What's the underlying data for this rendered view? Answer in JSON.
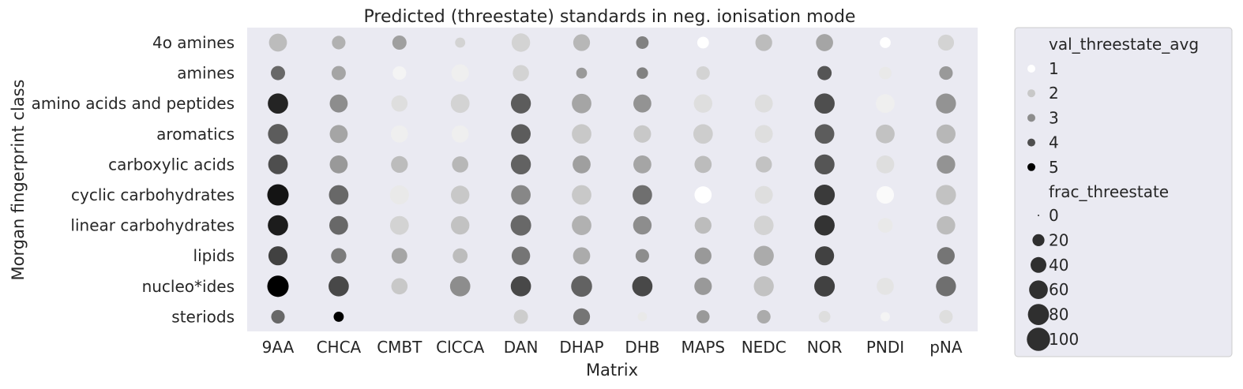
{
  "chart_data": {
    "type": "scatter",
    "title": "Predicted (threestate) standards in neg. ionisation mode",
    "xlabel": "Matrix",
    "ylabel": "Morgan fingerprint class",
    "categories_x": [
      "9AA",
      "CHCA",
      "CMBT",
      "ClCCA",
      "DAN",
      "DHAP",
      "DHB",
      "MAPS",
      "NEDC",
      "NOR",
      "PNDI",
      "pNA"
    ],
    "categories_y": [
      "4o amines",
      "amines",
      "amino acids and peptides",
      "aromatics",
      "carboxylic acids",
      "cyclic carbohydrates",
      "linear carbohydrates",
      "lipids",
      "nucleo*ides",
      "steriods"
    ],
    "grid": false,
    "background_color": "#eaeaf2",
    "color_scale": {
      "low": "#ffffff",
      "high": "#000000",
      "min": 1,
      "max": 5
    },
    "legend": {
      "placement": "outside-right",
      "hue_title": "val_threestate_avg",
      "hue_entries": [
        {
          "label": "1",
          "value": 1
        },
        {
          "label": "2",
          "value": 2
        },
        {
          "label": "3",
          "value": 3
        },
        {
          "label": "4",
          "value": 4
        },
        {
          "label": "5",
          "value": 5
        }
      ],
      "size_title": "frac_threestate",
      "size_entries": [
        {
          "label": "0",
          "value": 0
        },
        {
          "label": "20",
          "value": 20
        },
        {
          "label": "40",
          "value": 40
        },
        {
          "label": "60",
          "value": 60
        },
        {
          "label": "80",
          "value": 80
        },
        {
          "label": "100",
          "value": 100
        }
      ]
    },
    "points": [
      {
        "x": "9AA",
        "y": "4o amines",
        "val": 2.2,
        "frac": 45
      },
      {
        "x": "CHCA",
        "y": "4o amines",
        "val": 2.4,
        "frac": 22
      },
      {
        "x": "CMBT",
        "y": "4o amines",
        "val": 2.7,
        "frac": 25
      },
      {
        "x": "ClCCA",
        "y": "4o amines",
        "val": 1.8,
        "frac": 10
      },
      {
        "x": "DAN",
        "y": "4o amines",
        "val": 1.8,
        "frac": 48
      },
      {
        "x": "DHAP",
        "y": "4o amines",
        "val": 2.3,
        "frac": 38
      },
      {
        "x": "DHB",
        "y": "4o amines",
        "val": 3.2,
        "frac": 18
      },
      {
        "x": "MAPS",
        "y": "4o amines",
        "val": 1.0,
        "frac": 15
      },
      {
        "x": "NEDC",
        "y": "4o amines",
        "val": 2.2,
        "frac": 38
      },
      {
        "x": "NOR",
        "y": "4o amines",
        "val": 2.6,
        "frac": 40
      },
      {
        "x": "PNDI",
        "y": "4o amines",
        "val": 1.0,
        "frac": 12
      },
      {
        "x": "pNA",
        "y": "4o amines",
        "val": 1.8,
        "frac": 34
      },
      {
        "x": "9AA",
        "y": "amines",
        "val": 3.6,
        "frac": 25
      },
      {
        "x": "CHCA",
        "y": "amines",
        "val": 2.6,
        "frac": 25
      },
      {
        "x": "CMBT",
        "y": "amines",
        "val": 1.2,
        "frac": 22
      },
      {
        "x": "ClCCA",
        "y": "amines",
        "val": 1.3,
        "frac": 42
      },
      {
        "x": "DAN",
        "y": "amines",
        "val": 1.8,
        "frac": 35
      },
      {
        "x": "DHAP",
        "y": "amines",
        "val": 2.8,
        "frac": 12
      },
      {
        "x": "DHB",
        "y": "amines",
        "val": 3.2,
        "frac": 14
      },
      {
        "x": "MAPS",
        "y": "amines",
        "val": 1.8,
        "frac": 22
      },
      {
        "x": "NOR",
        "y": "amines",
        "val": 3.9,
        "frac": 25
      },
      {
        "x": "PNDI",
        "y": "amines",
        "val": 1.4,
        "frac": 18
      },
      {
        "x": "pNA",
        "y": "amines",
        "val": 2.8,
        "frac": 22
      },
      {
        "x": "9AA",
        "y": "amino acids and peptides",
        "val": 4.6,
        "frac": 60
      },
      {
        "x": "CHCA",
        "y": "amino acids and peptides",
        "val": 3.0,
        "frac": 45
      },
      {
        "x": "CMBT",
        "y": "amino acids and peptides",
        "val": 1.6,
        "frac": 35
      },
      {
        "x": "ClCCA",
        "y": "amino acids and peptides",
        "val": 1.8,
        "frac": 50
      },
      {
        "x": "DAN",
        "y": "amino acids and peptides",
        "val": 3.8,
        "frac": 58
      },
      {
        "x": "DHAP",
        "y": "amino acids and peptides",
        "val": 2.6,
        "frac": 55
      },
      {
        "x": "DHB",
        "y": "amino acids and peptides",
        "val": 2.9,
        "frac": 45
      },
      {
        "x": "MAPS",
        "y": "amino acids and peptides",
        "val": 1.6,
        "frac": 48
      },
      {
        "x": "NEDC",
        "y": "amino acids and peptides",
        "val": 1.6,
        "frac": 45
      },
      {
        "x": "NOR",
        "y": "amino acids and peptides",
        "val": 4.0,
        "frac": 60
      },
      {
        "x": "PNDI",
        "y": "amino acids and peptides",
        "val": 1.3,
        "frac": 50
      },
      {
        "x": "pNA",
        "y": "amino acids and peptides",
        "val": 2.9,
        "frac": 58
      },
      {
        "x": "9AA",
        "y": "aromatics",
        "val": 3.8,
        "frac": 58
      },
      {
        "x": "CHCA",
        "y": "aromatics",
        "val": 2.6,
        "frac": 45
      },
      {
        "x": "CMBT",
        "y": "aromatics",
        "val": 1.3,
        "frac": 40
      },
      {
        "x": "ClCCA",
        "y": "aromatics",
        "val": 1.3,
        "frac": 40
      },
      {
        "x": "DAN",
        "y": "aromatics",
        "val": 3.8,
        "frac": 55
      },
      {
        "x": "DHAP",
        "y": "aromatics",
        "val": 2.0,
        "frac": 55
      },
      {
        "x": "DHB",
        "y": "aromatics",
        "val": 2.0,
        "frac": 42
      },
      {
        "x": "MAPS",
        "y": "aromatics",
        "val": 1.9,
        "frac": 55
      },
      {
        "x": "NEDC",
        "y": "aromatics",
        "val": 1.6,
        "frac": 45
      },
      {
        "x": "NOR",
        "y": "aromatics",
        "val": 3.8,
        "frac": 55
      },
      {
        "x": "PNDI",
        "y": "aromatics",
        "val": 2.1,
        "frac": 50
      },
      {
        "x": "pNA",
        "y": "aromatics",
        "val": 2.3,
        "frac": 52
      },
      {
        "x": "9AA",
        "y": "carboxylic acids",
        "val": 4.0,
        "frac": 55
      },
      {
        "x": "CHCA",
        "y": "carboxylic acids",
        "val": 2.8,
        "frac": 45
      },
      {
        "x": "CMBT",
        "y": "carboxylic acids",
        "val": 2.2,
        "frac": 38
      },
      {
        "x": "ClCCA",
        "y": "carboxylic acids",
        "val": 2.3,
        "frac": 35
      },
      {
        "x": "DAN",
        "y": "carboxylic acids",
        "val": 3.7,
        "frac": 58
      },
      {
        "x": "DHAP",
        "y": "carboxylic acids",
        "val": 2.7,
        "frac": 45
      },
      {
        "x": "DHB",
        "y": "carboxylic acids",
        "val": 2.6,
        "frac": 45
      },
      {
        "x": "MAPS",
        "y": "carboxylic acids",
        "val": 2.2,
        "frac": 40
      },
      {
        "x": "NEDC",
        "y": "carboxylic acids",
        "val": 2.1,
        "frac": 35
      },
      {
        "x": "NOR",
        "y": "carboxylic acids",
        "val": 3.9,
        "frac": 58
      },
      {
        "x": "PNDI",
        "y": "carboxylic acids",
        "val": 1.6,
        "frac": 45
      },
      {
        "x": "pNA",
        "y": "carboxylic acids",
        "val": 2.9,
        "frac": 48
      },
      {
        "x": "9AA",
        "y": "cyclic carbohydrates",
        "val": 4.8,
        "frac": 68
      },
      {
        "x": "CHCA",
        "y": "cyclic carbohydrates",
        "val": 3.6,
        "frac": 55
      },
      {
        "x": "CMBT",
        "y": "cyclic carbohydrates",
        "val": 1.4,
        "frac": 52
      },
      {
        "x": "ClCCA",
        "y": "cyclic carbohydrates",
        "val": 2.0,
        "frac": 48
      },
      {
        "x": "DAN",
        "y": "cyclic carbohydrates",
        "val": 3.1,
        "frac": 55
      },
      {
        "x": "DHAP",
        "y": "cyclic carbohydrates",
        "val": 2.0,
        "frac": 55
      },
      {
        "x": "DHB",
        "y": "cyclic carbohydrates",
        "val": 3.5,
        "frac": 55
      },
      {
        "x": "MAPS",
        "y": "cyclic carbohydrates",
        "val": 1.0,
        "frac": 40
      },
      {
        "x": "NEDC",
        "y": "cyclic carbohydrates",
        "val": 1.6,
        "frac": 45
      },
      {
        "x": "NOR",
        "y": "cyclic carbohydrates",
        "val": 4.3,
        "frac": 62
      },
      {
        "x": "PNDI",
        "y": "cyclic carbohydrates",
        "val": 1.1,
        "frac": 42
      },
      {
        "x": "pNA",
        "y": "cyclic carbohydrates",
        "val": 2.1,
        "frac": 58
      },
      {
        "x": "9AA",
        "y": "linear carbohydrates",
        "val": 4.7,
        "frac": 60
      },
      {
        "x": "CHCA",
        "y": "linear carbohydrates",
        "val": 3.6,
        "frac": 50
      },
      {
        "x": "CMBT",
        "y": "linear carbohydrates",
        "val": 1.8,
        "frac": 50
      },
      {
        "x": "ClCCA",
        "y": "linear carbohydrates",
        "val": 2.1,
        "frac": 48
      },
      {
        "x": "DAN",
        "y": "linear carbohydrates",
        "val": 3.6,
        "frac": 62
      },
      {
        "x": "DHAP",
        "y": "linear carbohydrates",
        "val": 2.4,
        "frac": 55
      },
      {
        "x": "DHB",
        "y": "linear carbohydrates",
        "val": 3.0,
        "frac": 48
      },
      {
        "x": "MAPS",
        "y": "linear carbohydrates",
        "val": 2.2,
        "frac": 38
      },
      {
        "x": "NEDC",
        "y": "linear carbohydrates",
        "val": 1.8,
        "frac": 55
      },
      {
        "x": "NOR",
        "y": "linear carbohydrates",
        "val": 4.4,
        "frac": 60
      },
      {
        "x": "PNDI",
        "y": "linear carbohydrates",
        "val": 1.4,
        "frac": 28
      },
      {
        "x": "pNA",
        "y": "linear carbohydrates",
        "val": 2.2,
        "frac": 48
      },
      {
        "x": "9AA",
        "y": "lipids",
        "val": 4.2,
        "frac": 52
      },
      {
        "x": "CHCA",
        "y": "lipids",
        "val": 3.3,
        "frac": 30
      },
      {
        "x": "CMBT",
        "y": "lipids",
        "val": 2.6,
        "frac": 32
      },
      {
        "x": "ClCCA",
        "y": "lipids",
        "val": 2.2,
        "frac": 28
      },
      {
        "x": "DAN",
        "y": "lipids",
        "val": 3.4,
        "frac": 48
      },
      {
        "x": "DHAP",
        "y": "lipids",
        "val": 2.5,
        "frac": 40
      },
      {
        "x": "DHB",
        "y": "lipids",
        "val": 3.0,
        "frac": 22
      },
      {
        "x": "MAPS",
        "y": "lipids",
        "val": 2.8,
        "frac": 38
      },
      {
        "x": "NEDC",
        "y": "lipids",
        "val": 2.5,
        "frac": 58
      },
      {
        "x": "NOR",
        "y": "lipids",
        "val": 4.2,
        "frac": 52
      },
      {
        "x": "pNA",
        "y": "lipids",
        "val": 3.4,
        "frac": 42
      },
      {
        "x": "9AA",
        "y": "nucleo*ides",
        "val": 5.0,
        "frac": 68
      },
      {
        "x": "CHCA",
        "y": "nucleo*ides",
        "val": 4.1,
        "frac": 60
      },
      {
        "x": "CMBT",
        "y": "nucleo*ides",
        "val": 2.0,
        "frac": 35
      },
      {
        "x": "ClCCA",
        "y": "nucleo*ides",
        "val": 3.0,
        "frac": 60
      },
      {
        "x": "DAN",
        "y": "nucleo*ides",
        "val": 4.1,
        "frac": 60
      },
      {
        "x": "DHAP",
        "y": "nucleo*ides",
        "val": 3.7,
        "frac": 65
      },
      {
        "x": "DHB",
        "y": "nucleo*ides",
        "val": 4.1,
        "frac": 60
      },
      {
        "x": "MAPS",
        "y": "nucleo*ides",
        "val": 2.8,
        "frac": 42
      },
      {
        "x": "NEDC",
        "y": "nucleo*ides",
        "val": 2.1,
        "frac": 58
      },
      {
        "x": "NOR",
        "y": "nucleo*ides",
        "val": 4.2,
        "frac": 62
      },
      {
        "x": "PNDI",
        "y": "nucleo*ides",
        "val": 1.5,
        "frac": 40
      },
      {
        "x": "pNA",
        "y": "nucleo*ides",
        "val": 3.5,
        "frac": 58
      },
      {
        "x": "9AA",
        "y": "steriods",
        "val": 3.6,
        "frac": 22
      },
      {
        "x": "CHCA",
        "y": "steriods",
        "val": 5.0,
        "frac": 10
      },
      {
        "x": "DAN",
        "y": "steriods",
        "val": 1.9,
        "frac": 25
      },
      {
        "x": "DHAP",
        "y": "steriods",
        "val": 3.4,
        "frac": 38
      },
      {
        "x": "DHB",
        "y": "steriods",
        "val": 1.4,
        "frac": 8
      },
      {
        "x": "MAPS",
        "y": "steriods",
        "val": 2.8,
        "frac": 20
      },
      {
        "x": "NEDC",
        "y": "steriods",
        "val": 2.5,
        "frac": 22
      },
      {
        "x": "NOR",
        "y": "steriods",
        "val": 1.6,
        "frac": 15
      },
      {
        "x": "PNDI",
        "y": "steriods",
        "val": 1.2,
        "frac": 8
      },
      {
        "x": "pNA",
        "y": "steriods",
        "val": 1.6,
        "frac": 22
      }
    ]
  }
}
